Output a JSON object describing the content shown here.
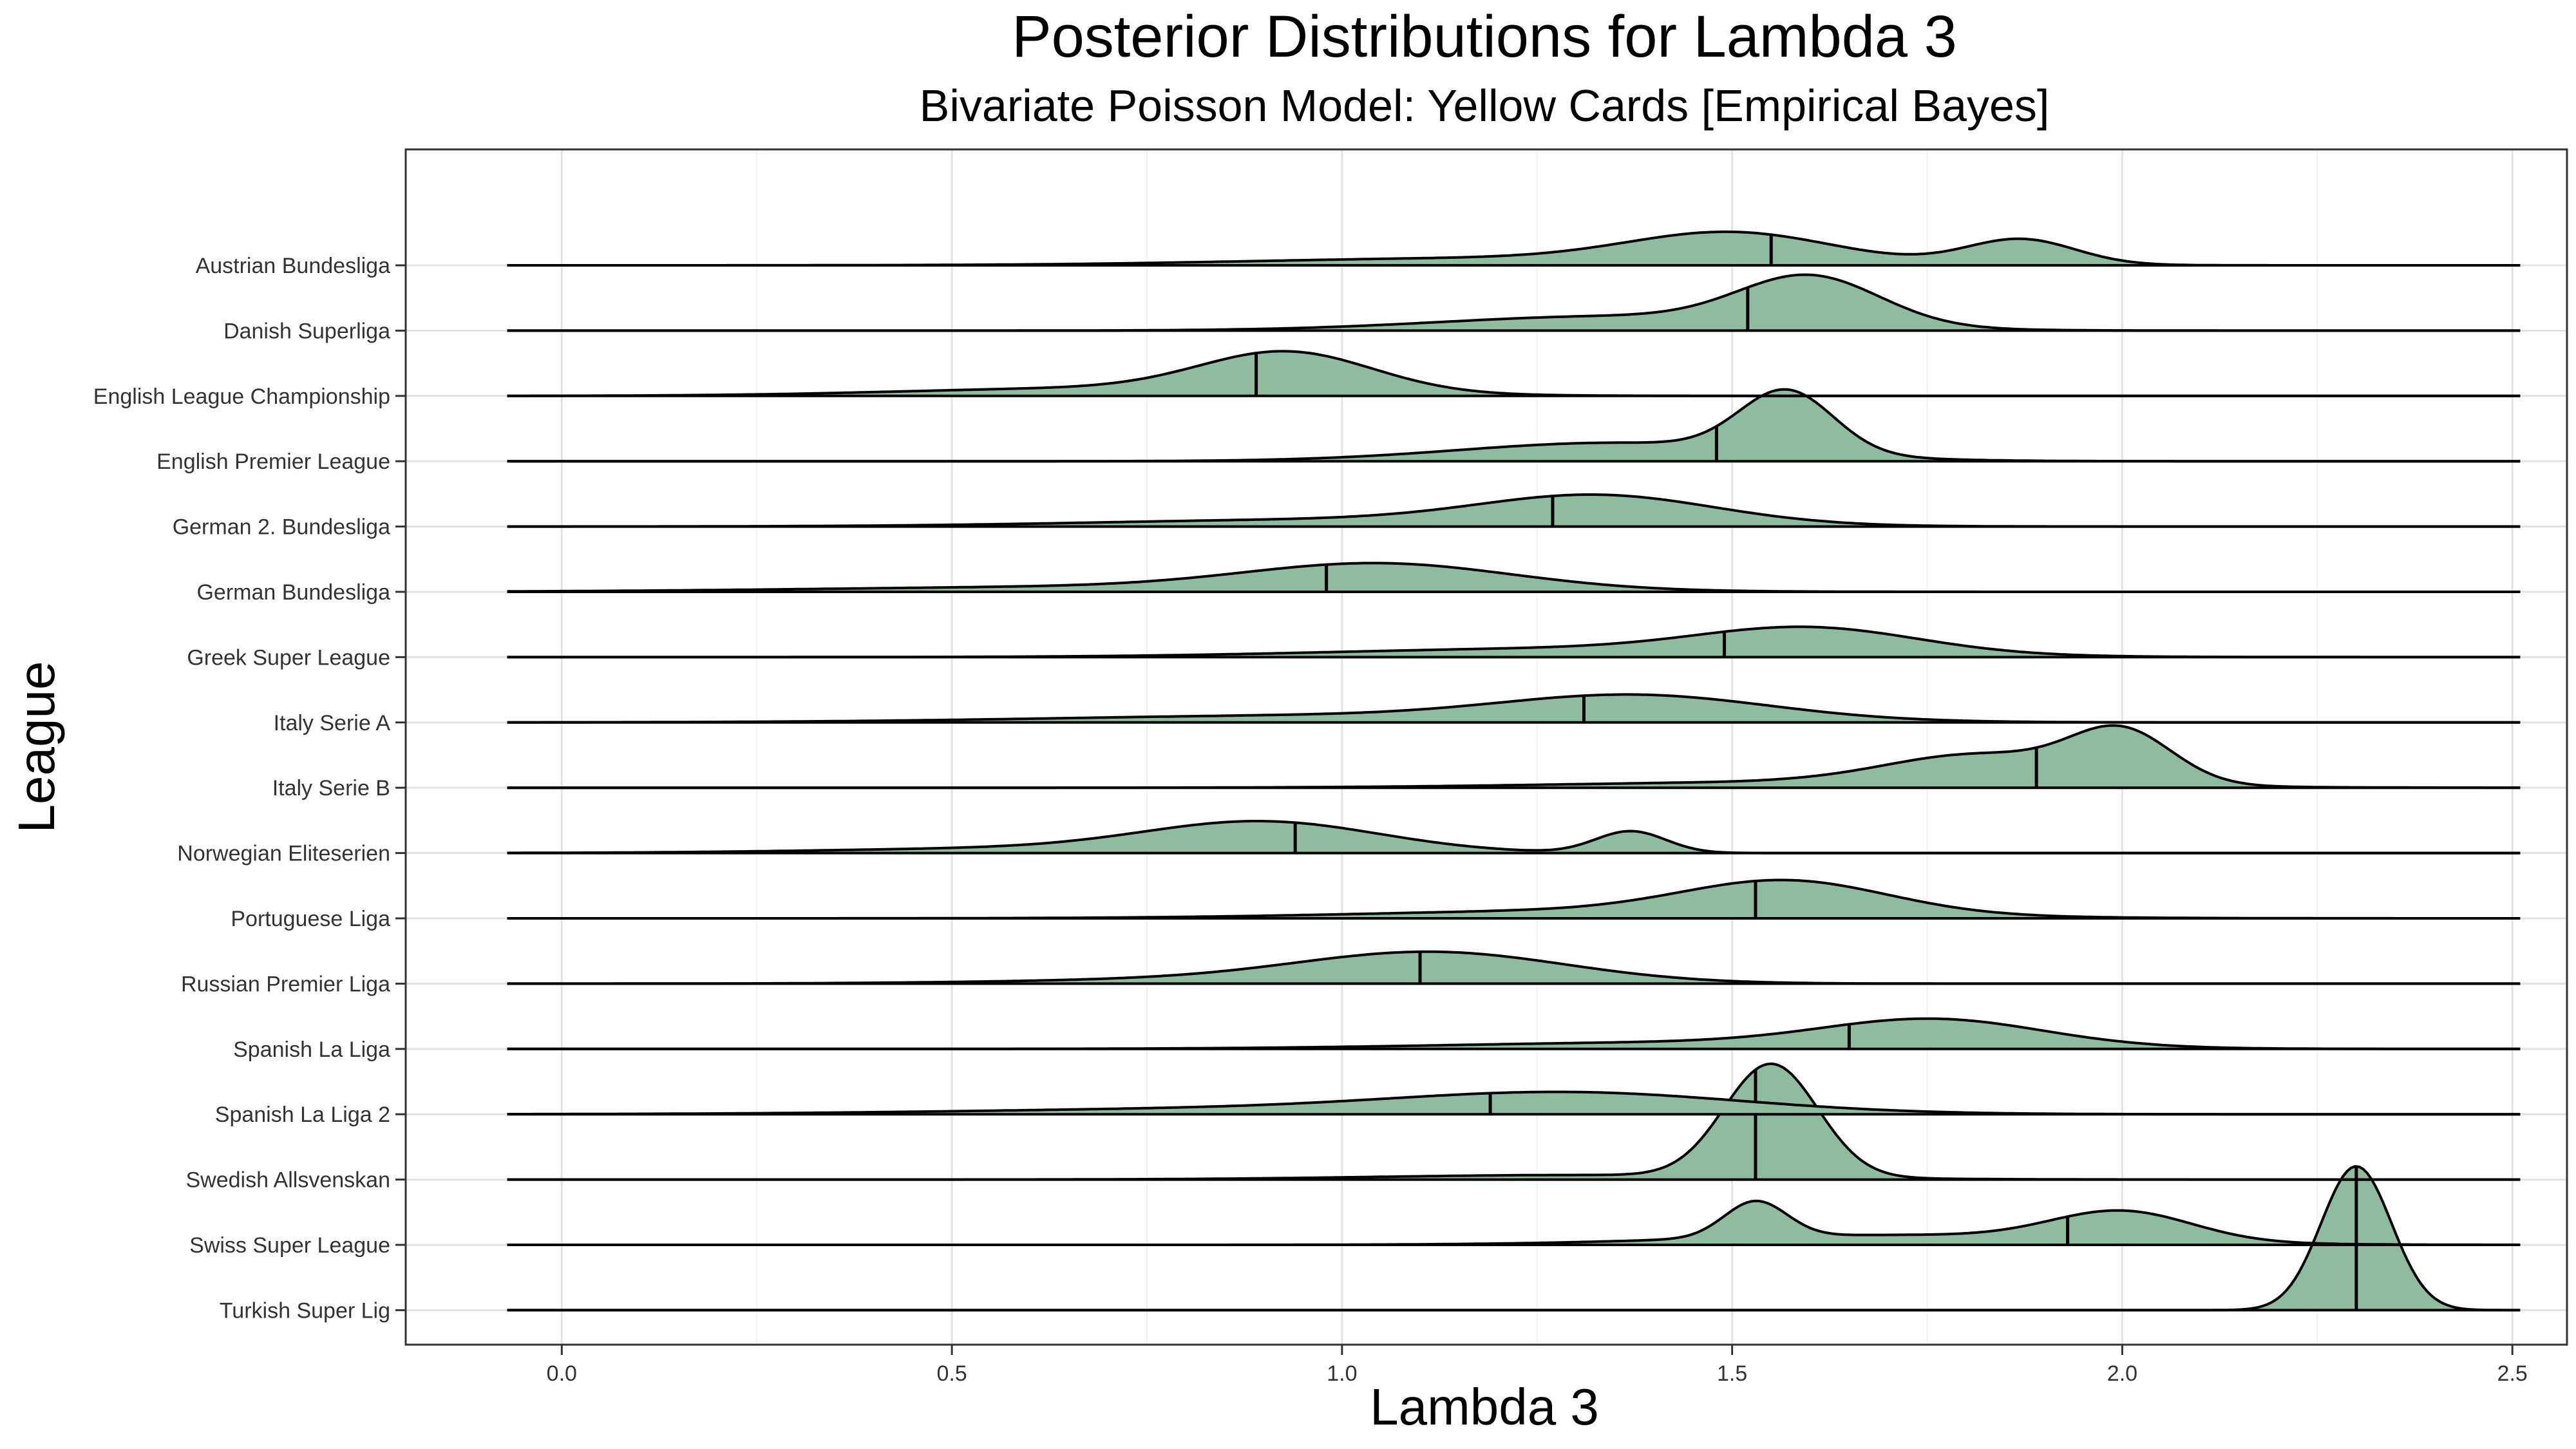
{
  "chart_data": {
    "type": "ridgeline",
    "title": "Posterior Distributions for Lambda 3",
    "subtitle": "Bivariate Poisson Model: Yellow Cards [Empirical Bayes]",
    "xlabel": "Lambda 3",
    "ylabel": "League",
    "xlim": [
      -0.2,
      2.57
    ],
    "x_ticks": [
      "0.0",
      "0.5",
      "1.0",
      "1.5",
      "2.0",
      "2.5"
    ],
    "x_tick_values": [
      0.0,
      0.5,
      1.0,
      1.5,
      2.0,
      2.5
    ],
    "curve_range": [
      -0.07,
      2.51
    ],
    "grid": true,
    "fill_color": "#8fbc9f",
    "line_color": "#000000",
    "series": [
      {
        "name": "Turkish Super Lig",
        "mean": 2.3,
        "peak": 1.8,
        "components": [
          {
            "mu": 2.3,
            "sd": 0.045,
            "w": 1.0
          }
        ]
      },
      {
        "name": "Swiss Super League",
        "mean": 1.93,
        "peak": 0.55,
        "components": [
          {
            "mu": 1.53,
            "sd": 0.04,
            "w": 0.55
          },
          {
            "mu": 2.0,
            "sd": 0.09,
            "w": 0.45
          },
          {
            "mu": 1.7,
            "sd": 0.25,
            "w": 0.15
          }
        ]
      },
      {
        "name": "Swedish Allsvenskan",
        "mean": 1.53,
        "peak": 1.45,
        "components": [
          {
            "mu": 1.55,
            "sd": 0.06,
            "w": 1.0
          },
          {
            "mu": 1.3,
            "sd": 0.25,
            "w": 0.04
          }
        ]
      },
      {
        "name": "Spanish La Liga 2",
        "mean": 1.19,
        "peak": 0.28,
        "components": [
          {
            "mu": 1.3,
            "sd": 0.22,
            "w": 1.0
          },
          {
            "mu": 0.9,
            "sd": 0.35,
            "w": 0.3
          }
        ]
      },
      {
        "name": "Spanish La Liga",
        "mean": 1.65,
        "peak": 0.38,
        "components": [
          {
            "mu": 1.76,
            "sd": 0.14,
            "w": 1.0
          },
          {
            "mu": 1.45,
            "sd": 0.3,
            "w": 0.25
          }
        ]
      },
      {
        "name": "Russian Premier Liga",
        "mean": 1.1,
        "peak": 0.4,
        "components": [
          {
            "mu": 1.12,
            "sd": 0.17,
            "w": 1.0
          },
          {
            "mu": 0.85,
            "sd": 0.25,
            "w": 0.15
          }
        ]
      },
      {
        "name": "Portuguese Liga",
        "mean": 1.53,
        "peak": 0.48,
        "components": [
          {
            "mu": 1.57,
            "sd": 0.13,
            "w": 1.0
          },
          {
            "mu": 1.35,
            "sd": 0.3,
            "w": 0.25
          }
        ]
      },
      {
        "name": "Norwegian Eliteserien",
        "mean": 0.94,
        "peak": 0.4,
        "components": [
          {
            "mu": 0.9,
            "sd": 0.15,
            "w": 0.75
          },
          {
            "mu": 1.37,
            "sd": 0.045,
            "w": 0.55
          },
          {
            "mu": 0.6,
            "sd": 0.25,
            "w": 0.12
          }
        ]
      },
      {
        "name": "Italy Serie B",
        "mean": 1.89,
        "peak": 0.78,
        "components": [
          {
            "mu": 2.0,
            "sd": 0.065,
            "w": 0.85
          },
          {
            "mu": 1.82,
            "sd": 0.12,
            "w": 0.5
          },
          {
            "mu": 1.6,
            "sd": 0.3,
            "w": 0.1
          }
        ]
      },
      {
        "name": "Italy Serie A",
        "mean": 1.31,
        "peak": 0.35,
        "components": [
          {
            "mu": 1.38,
            "sd": 0.17,
            "w": 1.0
          },
          {
            "mu": 1.0,
            "sd": 0.35,
            "w": 0.3
          }
        ]
      },
      {
        "name": "Greek Super League",
        "mean": 1.49,
        "peak": 0.38,
        "components": [
          {
            "mu": 1.6,
            "sd": 0.14,
            "w": 1.0
          },
          {
            "mu": 1.3,
            "sd": 0.3,
            "w": 0.35
          }
        ]
      },
      {
        "name": "German Bundesliga",
        "mean": 0.98,
        "peak": 0.36,
        "components": [
          {
            "mu": 1.05,
            "sd": 0.17,
            "w": 1.0
          },
          {
            "mu": 0.7,
            "sd": 0.35,
            "w": 0.2
          }
        ]
      },
      {
        "name": "German 2. Bundesliga",
        "mean": 1.27,
        "peak": 0.4,
        "components": [
          {
            "mu": 1.33,
            "sd": 0.15,
            "w": 1.0
          },
          {
            "mu": 1.0,
            "sd": 0.3,
            "w": 0.25
          }
        ]
      },
      {
        "name": "English Premier League",
        "mean": 1.48,
        "peak": 0.9,
        "components": [
          {
            "mu": 1.57,
            "sd": 0.06,
            "w": 1.0
          },
          {
            "mu": 1.35,
            "sd": 0.2,
            "w": 0.3
          }
        ]
      },
      {
        "name": "English League Championship",
        "mean": 0.89,
        "peak": 0.56,
        "components": [
          {
            "mu": 0.93,
            "sd": 0.11,
            "w": 1.0
          },
          {
            "mu": 0.7,
            "sd": 0.25,
            "w": 0.2
          }
        ]
      },
      {
        "name": "Danish Superliga",
        "mean": 1.52,
        "peak": 0.7,
        "components": [
          {
            "mu": 1.6,
            "sd": 0.09,
            "w": 1.0
          },
          {
            "mu": 1.35,
            "sd": 0.22,
            "w": 0.3
          }
        ]
      },
      {
        "name": "Austrian Bundesliga",
        "mean": 1.55,
        "peak": 0.42,
        "components": [
          {
            "mu": 1.87,
            "sd": 0.07,
            "w": 0.7
          },
          {
            "mu": 1.5,
            "sd": 0.13,
            "w": 0.8
          },
          {
            "mu": 1.2,
            "sd": 0.3,
            "w": 0.2
          }
        ]
      }
    ]
  }
}
